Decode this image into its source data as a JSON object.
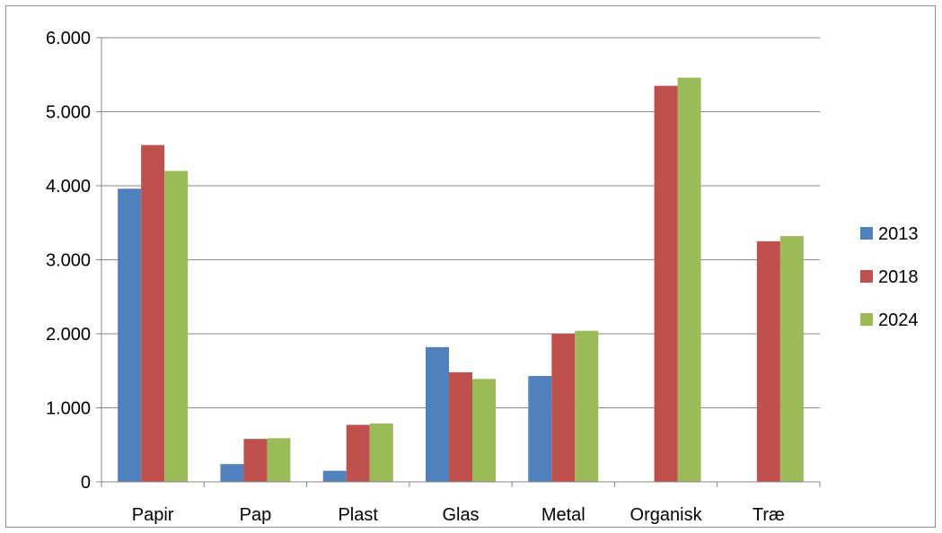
{
  "chart_data": {
    "type": "bar",
    "title": "",
    "xlabel": "",
    "ylabel": "",
    "categories": [
      "Papir",
      "Pap",
      "Plast",
      "Glas",
      "Metal",
      "Organisk",
      "Træ"
    ],
    "series": [
      {
        "name": "2013",
        "color": "#4f81bd",
        "values": [
          3960,
          240,
          150,
          1820,
          1430,
          0,
          0
        ]
      },
      {
        "name": "2018",
        "color": "#c0504d",
        "values": [
          4550,
          580,
          770,
          1480,
          2000,
          5350,
          3250
        ]
      },
      {
        "name": "2024",
        "color": "#9bbb59",
        "values": [
          4200,
          590,
          790,
          1390,
          2040,
          5460,
          3320
        ]
      }
    ],
    "ylim": [
      0,
      6000
    ],
    "yticks": [
      0,
      1000,
      2000,
      3000,
      4000,
      5000,
      6000
    ],
    "ytick_labels": [
      "0",
      "1.000",
      "2.000",
      "3.000",
      "4.000",
      "5.000",
      "6.000"
    ],
    "grid": true,
    "legend_position": "right"
  }
}
